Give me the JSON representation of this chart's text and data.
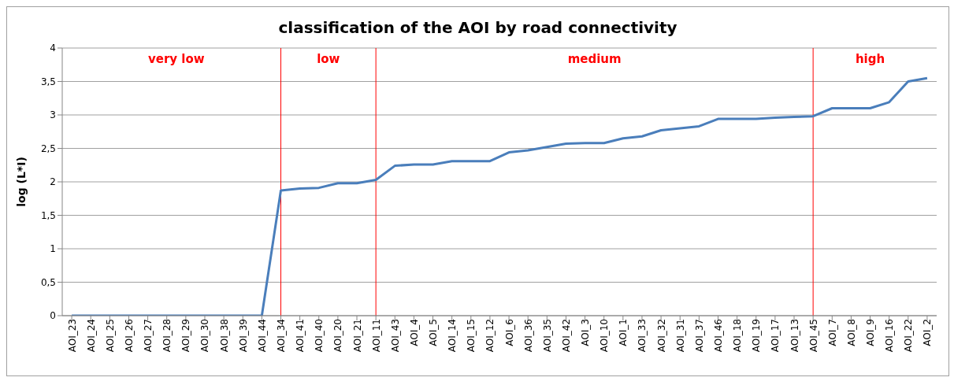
{
  "chart_data": {
    "type": "line",
    "title": "classification of the AOI by road connectivity",
    "ylabel": "log (L*I)",
    "categories": [
      "AOI_23",
      "AOI_24",
      "AOI_25",
      "AOI_26",
      "AOI_27",
      "AOI_28",
      "AOI_29",
      "AOI_30",
      "AOI_38",
      "AOI_39",
      "AOI_44",
      "AOI_34",
      "AOI_41",
      "AOI_40",
      "AOI_20",
      "AOI_21",
      "AOI_11",
      "AOI_43",
      "AOI_4",
      "AOI_5",
      "AOI_14",
      "AOI_15",
      "AOI_12",
      "AOI_6",
      "AOI_36",
      "AOI_35",
      "AOI_42",
      "AOI_3",
      "AOI_10",
      "AOI_1",
      "AOI_33",
      "AOI_32",
      "AOI_31",
      "AOI_37",
      "AOI_46",
      "AOI_18",
      "AOI_19",
      "AOI_17",
      "AOI_13",
      "AOI_45",
      "AOI_7",
      "AOI_8",
      "AOI_9",
      "AOI_16",
      "AOI_22",
      "AOI_2"
    ],
    "series": [
      {
        "color": "#4a7ebb",
        "values": [
          0,
          0,
          0,
          0,
          0,
          0,
          0,
          0,
          0,
          0,
          0,
          1.87,
          1.9,
          1.91,
          1.98,
          1.98,
          2.03,
          2.24,
          2.26,
          2.26,
          2.31,
          2.31,
          2.31,
          2.44,
          2.47,
          2.52,
          2.57,
          2.58,
          2.58,
          2.65,
          2.68,
          2.77,
          2.8,
          2.83,
          2.94,
          2.94,
          2.94,
          2.96,
          2.97,
          2.98,
          3.1,
          3.1,
          3.1,
          3.19,
          3.5,
          3.55
        ]
      }
    ],
    "ylim": [
      0,
      4
    ],
    "yticks": [
      0,
      {
        "value": 0.5,
        "label": "0,5"
      },
      1,
      {
        "value": 1.5,
        "label": "1,5"
      },
      2,
      {
        "value": 2.5,
        "label": "2,5"
      },
      3,
      {
        "value": 3.5,
        "label": "3,5"
      },
      4
    ],
    "ref_lines": [
      {
        "axis": "x",
        "value": "AOI_34",
        "color": "#ff0000"
      },
      {
        "axis": "x",
        "value": "AOI_11",
        "color": "#ff0000"
      },
      {
        "axis": "x",
        "value": "AOI_45",
        "color": "#ff0000"
      }
    ],
    "annotations": [
      "very low",
      "low",
      "medium",
      "high"
    ],
    "grid": "y",
    "legend": false,
    "marker": "none",
    "line_style": "solid"
  }
}
